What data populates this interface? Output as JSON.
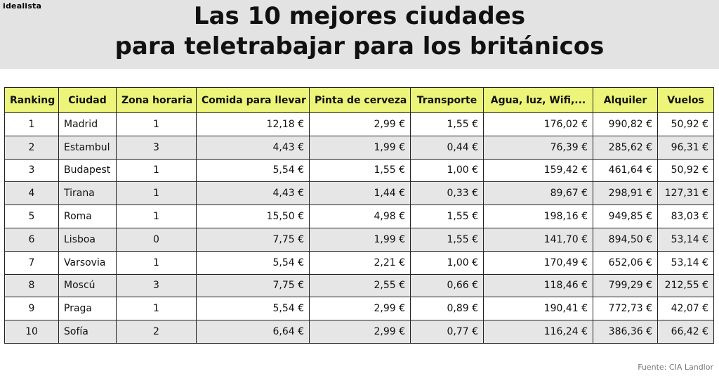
{
  "brand": "idealista",
  "title_line1": "Las 10 mejores ciudades",
  "title_line2": "para teletrabajar para los británicos",
  "source": "Fuente: CIA Landlor",
  "colors": {
    "header_bg": "#e3e3e3",
    "table_header_bg": "#ecf57a",
    "row_alt_bg": "#e6e6e6"
  },
  "chart_data": {
    "type": "table",
    "columns": [
      "Ranking",
      "Ciudad",
      "Zona horaria",
      "Comida para llevar",
      "Pinta de cerveza",
      "Transporte",
      "Agua, luz, Wifi,...",
      "Alquiler",
      "Vuelos"
    ],
    "rows": [
      [
        "1",
        "Madrid",
        "1",
        "12,18 €",
        "2,99 €",
        "1,55 €",
        "176,02 €",
        "990,82 €",
        "50,92 €"
      ],
      [
        "2",
        "Estambul",
        "3",
        "4,43 €",
        "1,99 €",
        "0,44 €",
        "76,39 €",
        "285,62 €",
        "96,31 €"
      ],
      [
        "3",
        "Budapest",
        "1",
        "5,54 €",
        "1,55 €",
        "1,00 €",
        "159,42 €",
        "461,64 €",
        "50,92 €"
      ],
      [
        "4",
        "Tirana",
        "1",
        "4,43 €",
        "1,44 €",
        "0,33 €",
        "89,67 €",
        "298,91 €",
        "127,31 €"
      ],
      [
        "5",
        "Roma",
        "1",
        "15,50 €",
        "4,98 €",
        "1,55 €",
        "198,16 €",
        "949,85 €",
        "83,03 €"
      ],
      [
        "6",
        "Lisboa",
        "0",
        "7,75 €",
        "1,99 €",
        "1,55 €",
        "141,70 €",
        "894,50 €",
        "53,14 €"
      ],
      [
        "7",
        "Varsovia",
        "1",
        "5,54 €",
        "2,21 €",
        "1,00 €",
        "170,49 €",
        "652,06 €",
        "53,14 €"
      ],
      [
        "8",
        "Moscú",
        "3",
        "7,75 €",
        "2,55 €",
        "0,66 €",
        "118,46 €",
        "799,29 €",
        "212,55 €"
      ],
      [
        "9",
        "Praga",
        "1",
        "5,54 €",
        "2,99 €",
        "0,89 €",
        "190,41 €",
        "772,73 €",
        "42,07 €"
      ],
      [
        "10",
        "Sofía",
        "2",
        "6,64 €",
        "2,99 €",
        "0,77 €",
        "116,24 €",
        "386,36 €",
        "66,42 €"
      ]
    ]
  }
}
